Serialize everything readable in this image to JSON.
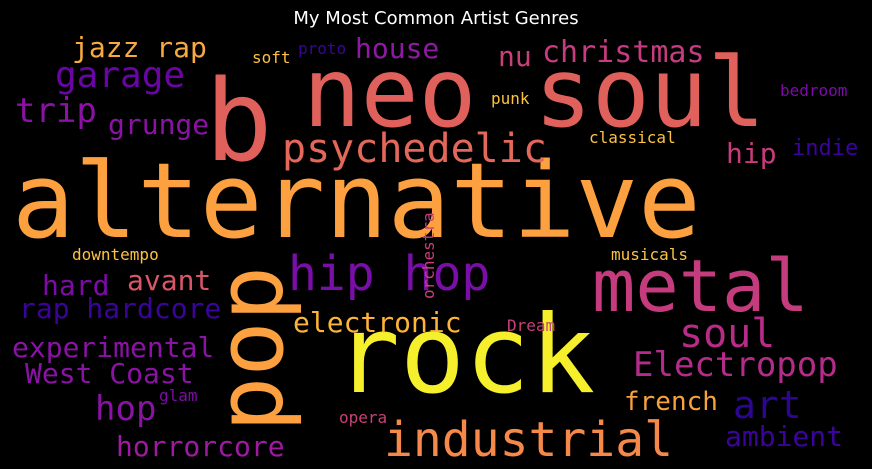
{
  "title": "My Most Common Artist Genres",
  "words": [
    {
      "text": "alternative",
      "color": "#fca040"
    },
    {
      "text": "neo soul",
      "color": "#e0605c"
    },
    {
      "text": "rock",
      "color": "#f6f02c"
    },
    {
      "text": "b",
      "color": "#e0605c"
    },
    {
      "text": "pop",
      "color": "#fca040"
    },
    {
      "text": "metal",
      "color": "#c43c7e"
    },
    {
      "text": "hip hop",
      "color": "#7a0ea8"
    },
    {
      "text": "industrial",
      "color": "#f6894a"
    },
    {
      "text": "psychedelic",
      "color": "#e4685a"
    },
    {
      "text": "garage",
      "color": "#6a04a4"
    },
    {
      "text": "christmas",
      "color": "#c53c80"
    },
    {
      "text": "jazz rap",
      "color": "#f8a940"
    },
    {
      "text": "house",
      "color": "#8e1aa2"
    },
    {
      "text": "nu",
      "color": "#c84078"
    },
    {
      "text": "trip",
      "color": "#8a12a4"
    },
    {
      "text": "grunge",
      "color": "#8a12a4"
    },
    {
      "text": "soul",
      "color": "#b82c88"
    },
    {
      "text": "Electropop",
      "color": "#b42c8a"
    },
    {
      "text": "art",
      "color": "#2c0594"
    },
    {
      "text": "electronic",
      "color": "#fcb43a"
    },
    {
      "text": "hip",
      "color": "#c83c7c"
    },
    {
      "text": "indie",
      "color": "#3a049a"
    },
    {
      "text": "hard",
      "color": "#7e0aa8"
    },
    {
      "text": "avant",
      "color": "#d8566a"
    },
    {
      "text": "rap hardcore",
      "color": "#3a049a"
    },
    {
      "text": "experimental",
      "color": "#8a12a4"
    },
    {
      "text": "West Coast",
      "color": "#8a12a4"
    },
    {
      "text": "hop",
      "color": "#8a12a4"
    },
    {
      "text": "horrorcore",
      "color": "#9e1aa0"
    },
    {
      "text": "french",
      "color": "#f9a23c"
    },
    {
      "text": "ambient",
      "color": "#3a049a"
    },
    {
      "text": "soft",
      "color": "#fcc240"
    },
    {
      "text": "proto",
      "color": "#3a049a"
    },
    {
      "text": "punk",
      "color": "#fcc240"
    },
    {
      "text": "bedroom",
      "color": "#7e0aa8"
    },
    {
      "text": "classical",
      "color": "#fcc240"
    },
    {
      "text": "downtempo",
      "color": "#fcc240"
    },
    {
      "text": "orchestra",
      "color": "#c84078"
    },
    {
      "text": "musicals",
      "color": "#fcc240"
    },
    {
      "text": "Dream",
      "color": "#c84078"
    },
    {
      "text": "glam",
      "color": "#7e0aa8"
    },
    {
      "text": "opera",
      "color": "#c84078"
    }
  ]
}
